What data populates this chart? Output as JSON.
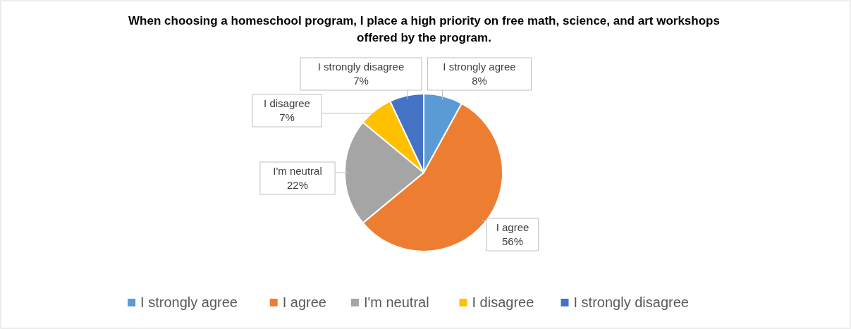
{
  "chart_data": {
    "type": "pie",
    "title": "When choosing a homeschool program, I place a high priority on free math, science, and art workshops offered by the program.",
    "categories": [
      "I strongly agree",
      "I agree",
      "I'm neutral",
      "I disagree",
      "I strongly disagree"
    ],
    "values": [
      8,
      56,
      22,
      7,
      7
    ],
    "colors": [
      "#5b9bd5",
      "#ed7d31",
      "#a5a5a5",
      "#ffc000",
      "#4472c4"
    ],
    "value_labels": [
      "I strongly agree 8%",
      "I agree 56%",
      "I'm neutral 22%",
      "I disagree 7%",
      "I strongly disagree 7%"
    ],
    "legend": "bottom"
  }
}
